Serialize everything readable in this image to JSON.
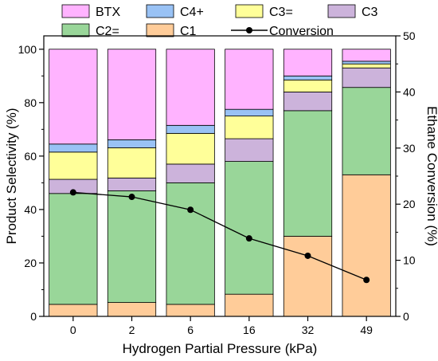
{
  "chart_data": {
    "type": "bar",
    "stacked": true,
    "xlabel": "Hydrogen Partial Pressure (kPa)",
    "ylabel": "Product Selectivity (%)",
    "y2label": "Ethane Conversion (%)",
    "ylim": [
      0,
      105
    ],
    "y2lim": [
      0,
      50
    ],
    "yticks": [
      0,
      20,
      40,
      60,
      80,
      100
    ],
    "y2ticks": [
      0,
      10,
      20,
      30,
      40,
      50
    ],
    "categories": [
      "0",
      "2",
      "6",
      "16",
      "32",
      "49"
    ],
    "series": [
      {
        "name": "C1",
        "color": "#FFCC99",
        "values": [
          4.5,
          5.2,
          4.5,
          8.3,
          30.0,
          53.0
        ]
      },
      {
        "name": "C2=",
        "color": "#99D699",
        "values": [
          41.5,
          41.8,
          45.5,
          49.7,
          47.0,
          32.7
        ]
      },
      {
        "name": "C3",
        "color": "#CCB3DB",
        "values": [
          5.3,
          4.8,
          7.0,
          8.5,
          7.0,
          7.3
        ]
      },
      {
        "name": "C3=",
        "color": "#FFFF99",
        "values": [
          10.2,
          11.3,
          11.5,
          8.5,
          4.5,
          1.5
        ]
      },
      {
        "name": "C4+",
        "color": "#99C2F5",
        "values": [
          3.0,
          3.0,
          3.0,
          2.5,
          1.5,
          1.0
        ]
      },
      {
        "name": "BTX",
        "color": "#FFB3FF",
        "values": [
          35.5,
          33.9,
          28.5,
          22.5,
          10.0,
          4.5
        ]
      }
    ],
    "line_series": {
      "name": "Conversion",
      "axis": "right",
      "color": "#000000",
      "values": [
        22.1,
        21.3,
        19.0,
        13.9,
        10.8,
        6.5
      ]
    },
    "legend": {
      "placement": "top",
      "entries": [
        {
          "name": "BTX",
          "kind": "bar",
          "color": "#FFB3FF"
        },
        {
          "name": "C4+",
          "kind": "bar",
          "color": "#99C2F5"
        },
        {
          "name": "C3=",
          "kind": "bar",
          "color": "#FFFF99"
        },
        {
          "name": "C3",
          "kind": "bar",
          "color": "#CCB3DB"
        },
        {
          "name": "C2=",
          "kind": "bar",
          "color": "#99D699"
        },
        {
          "name": "C1",
          "kind": "bar",
          "color": "#FFCC99"
        },
        {
          "name": "Conversion",
          "kind": "line",
          "color": "#000000"
        }
      ]
    },
    "grid": false
  }
}
